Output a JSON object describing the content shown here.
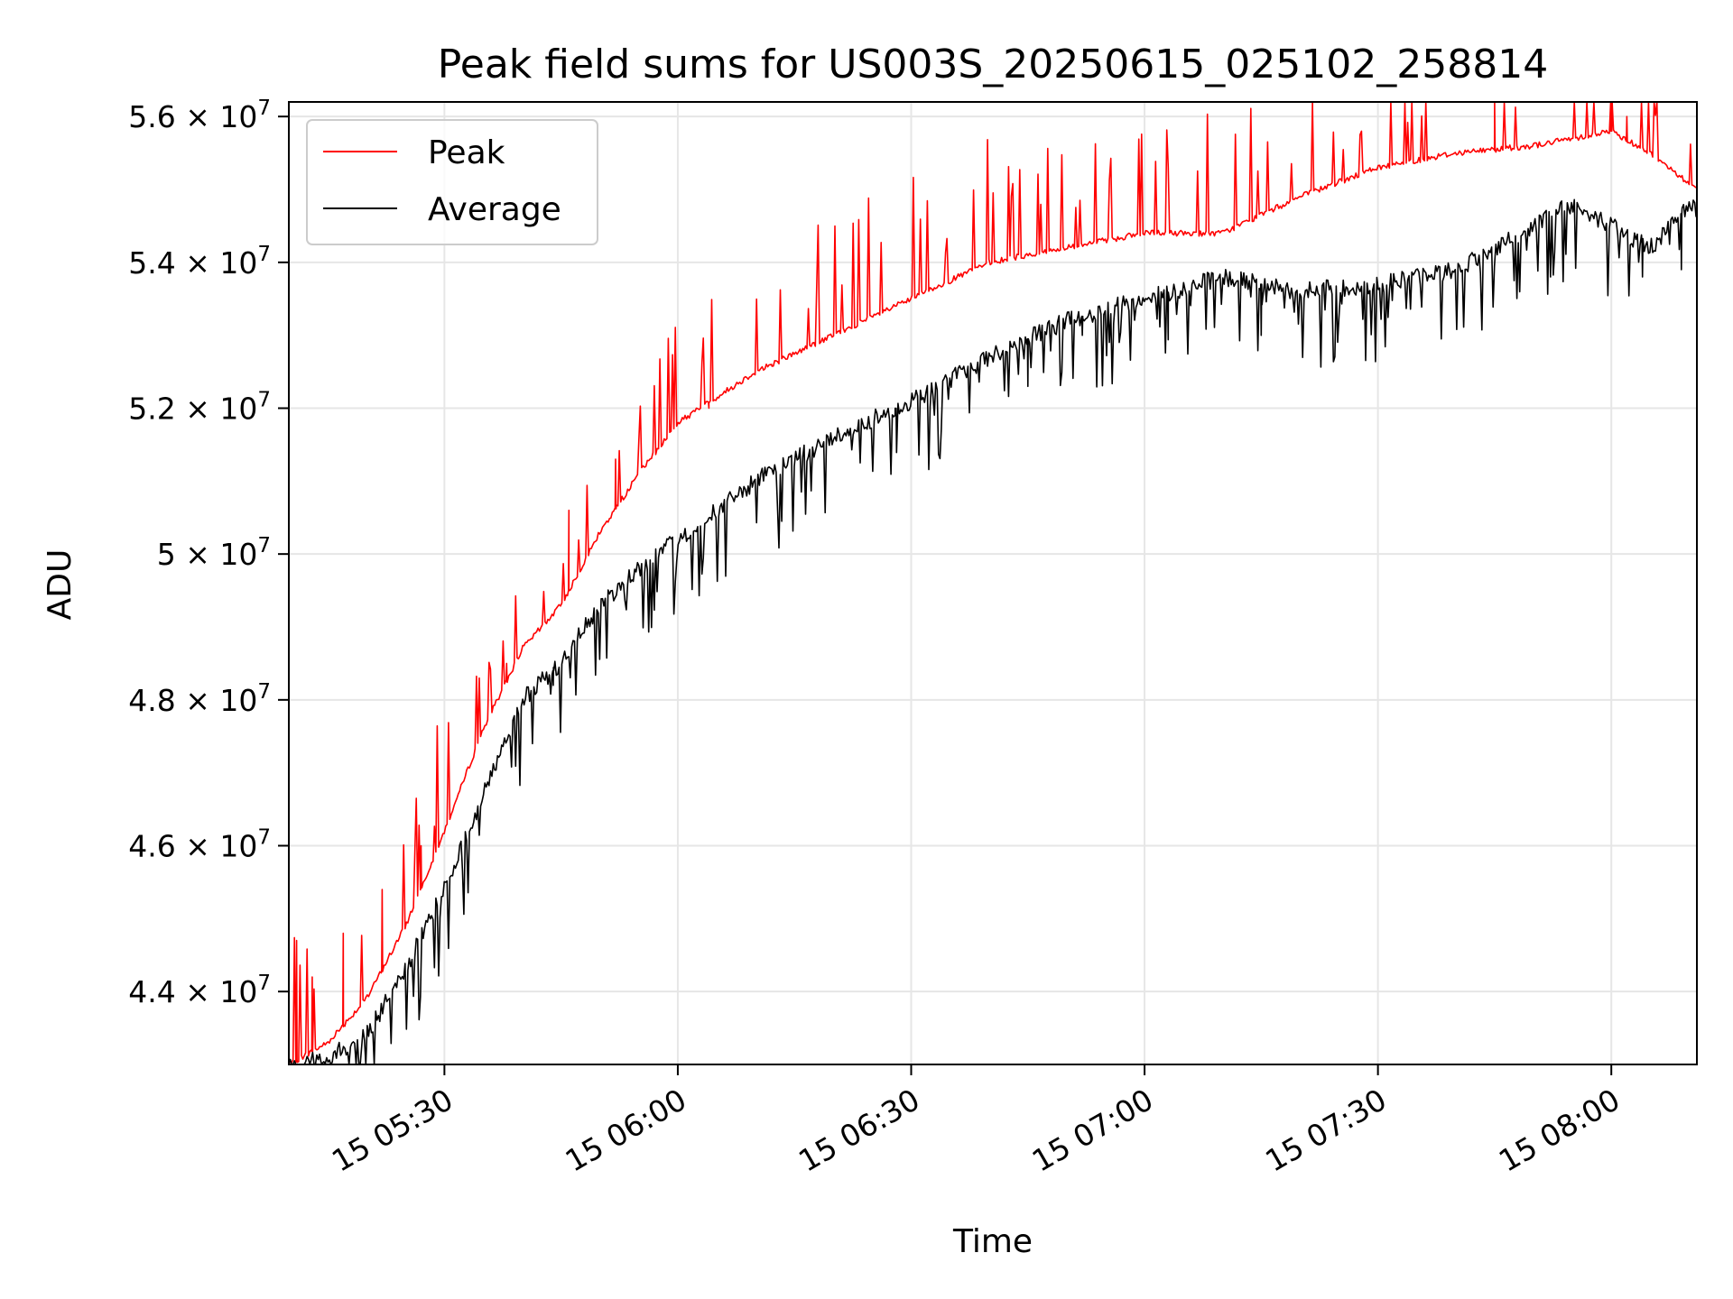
{
  "chart_data": {
    "type": "line",
    "title": "Peak field sums for US003S_20250615_025102_258814",
    "xlabel": "Time",
    "ylabel": "ADU",
    "x_range": [
      "15 05:10",
      "15 08:11"
    ],
    "ylim": [
      43000000,
      56200000
    ],
    "x_ticks": [
      "15 05:30",
      "15 06:00",
      "15 06:30",
      "15 07:00",
      "15 07:30",
      "15 08:00"
    ],
    "y_ticks": [
      {
        "value": 44000000,
        "mantissa": "4.4",
        "exponent": "7"
      },
      {
        "value": 46000000,
        "mantissa": "4.6",
        "exponent": "7"
      },
      {
        "value": 48000000,
        "mantissa": "4.8",
        "exponent": "7"
      },
      {
        "value": 50000000,
        "mantissa": "5",
        "exponent": "7"
      },
      {
        "value": 52000000,
        "mantissa": "5.2",
        "exponent": "7"
      },
      {
        "value": 54000000,
        "mantissa": "5.4",
        "exponent": "7"
      },
      {
        "value": 56000000,
        "mantissa": "5.6",
        "exponent": "7"
      }
    ],
    "grid": true,
    "legend_position": "top-left",
    "series": [
      {
        "name": "Peak",
        "color": "#ff0000",
        "x": [
          "15 05:10",
          "15 05:15",
          "15 05:20",
          "15 05:25",
          "15 05:30",
          "15 05:35",
          "15 05:40",
          "15 05:45",
          "15 05:50",
          "15 05:55",
          "15 06:00",
          "15 06:10",
          "15 06:20",
          "15 06:30",
          "15 06:40",
          "15 06:50",
          "15 07:00",
          "15 07:10",
          "15 07:20",
          "15 07:30",
          "15 07:40",
          "15 07:50",
          "15 07:55",
          "15 08:00",
          "15 08:05",
          "15 08:11"
        ],
        "values": [
          43000000,
          43300000,
          43900000,
          44900000,
          46200000,
          47600000,
          48700000,
          49300000,
          50300000,
          51100000,
          51800000,
          52500000,
          53000000,
          53500000,
          54000000,
          54200000,
          54400000,
          54400000,
          54900000,
          55300000,
          55500000,
          55600000,
          55700000,
          55800000,
          55500000,
          55000000
        ],
        "spikes": [
          [
            "15 05:11",
            44700000
          ],
          [
            "15 05:13",
            44200000
          ],
          [
            "15 05:17",
            44800000
          ],
          [
            "15 05:22",
            45400000
          ],
          [
            "15 05:27",
            46000000
          ],
          [
            "15 05:38",
            48500000
          ],
          [
            "15 05:46",
            50600000
          ],
          [
            "15 05:52",
            51300000
          ],
          [
            "15 06:04",
            52000000
          ],
          [
            "15 06:12",
            52600000
          ],
          [
            "15 07:45",
            56200000
          ],
          [
            "15 08:00",
            56200000
          ],
          [
            "15 08:02",
            56000000
          ]
        ]
      },
      {
        "name": "Average",
        "color": "#000000",
        "x": [
          "15 05:10",
          "15 05:15",
          "15 05:20",
          "15 05:25",
          "15 05:30",
          "15 05:35",
          "15 05:40",
          "15 05:45",
          "15 05:50",
          "15 05:55",
          "15 06:00",
          "15 06:10",
          "15 06:20",
          "15 06:30",
          "15 06:40",
          "15 06:50",
          "15 07:00",
          "15 07:10",
          "15 07:20",
          "15 07:30",
          "15 07:40",
          "15 07:50",
          "15 07:55",
          "15 08:00",
          "15 08:05",
          "15 08:11"
        ],
        "values": [
          43000000,
          43100000,
          43400000,
          44300000,
          45400000,
          46700000,
          48000000,
          48500000,
          49300000,
          49800000,
          50200000,
          51000000,
          51600000,
          52100000,
          52700000,
          53200000,
          53500000,
          53800000,
          53600000,
          53700000,
          53900000,
          54500000,
          54800000,
          54500000,
          54200000,
          54900000
        ],
        "dips": [
          [
            "15 05:44",
            48200000
          ],
          [
            "15 06:28",
            51900000
          ],
          [
            "15 06:45",
            52300000
          ],
          [
            "15 06:52",
            53000000
          ],
          [
            "15 07:03",
            53300000
          ],
          [
            "15 07:15",
            53000000
          ],
          [
            "15 08:04",
            53800000
          ],
          [
            "15 08:09",
            53900000
          ]
        ]
      }
    ]
  }
}
